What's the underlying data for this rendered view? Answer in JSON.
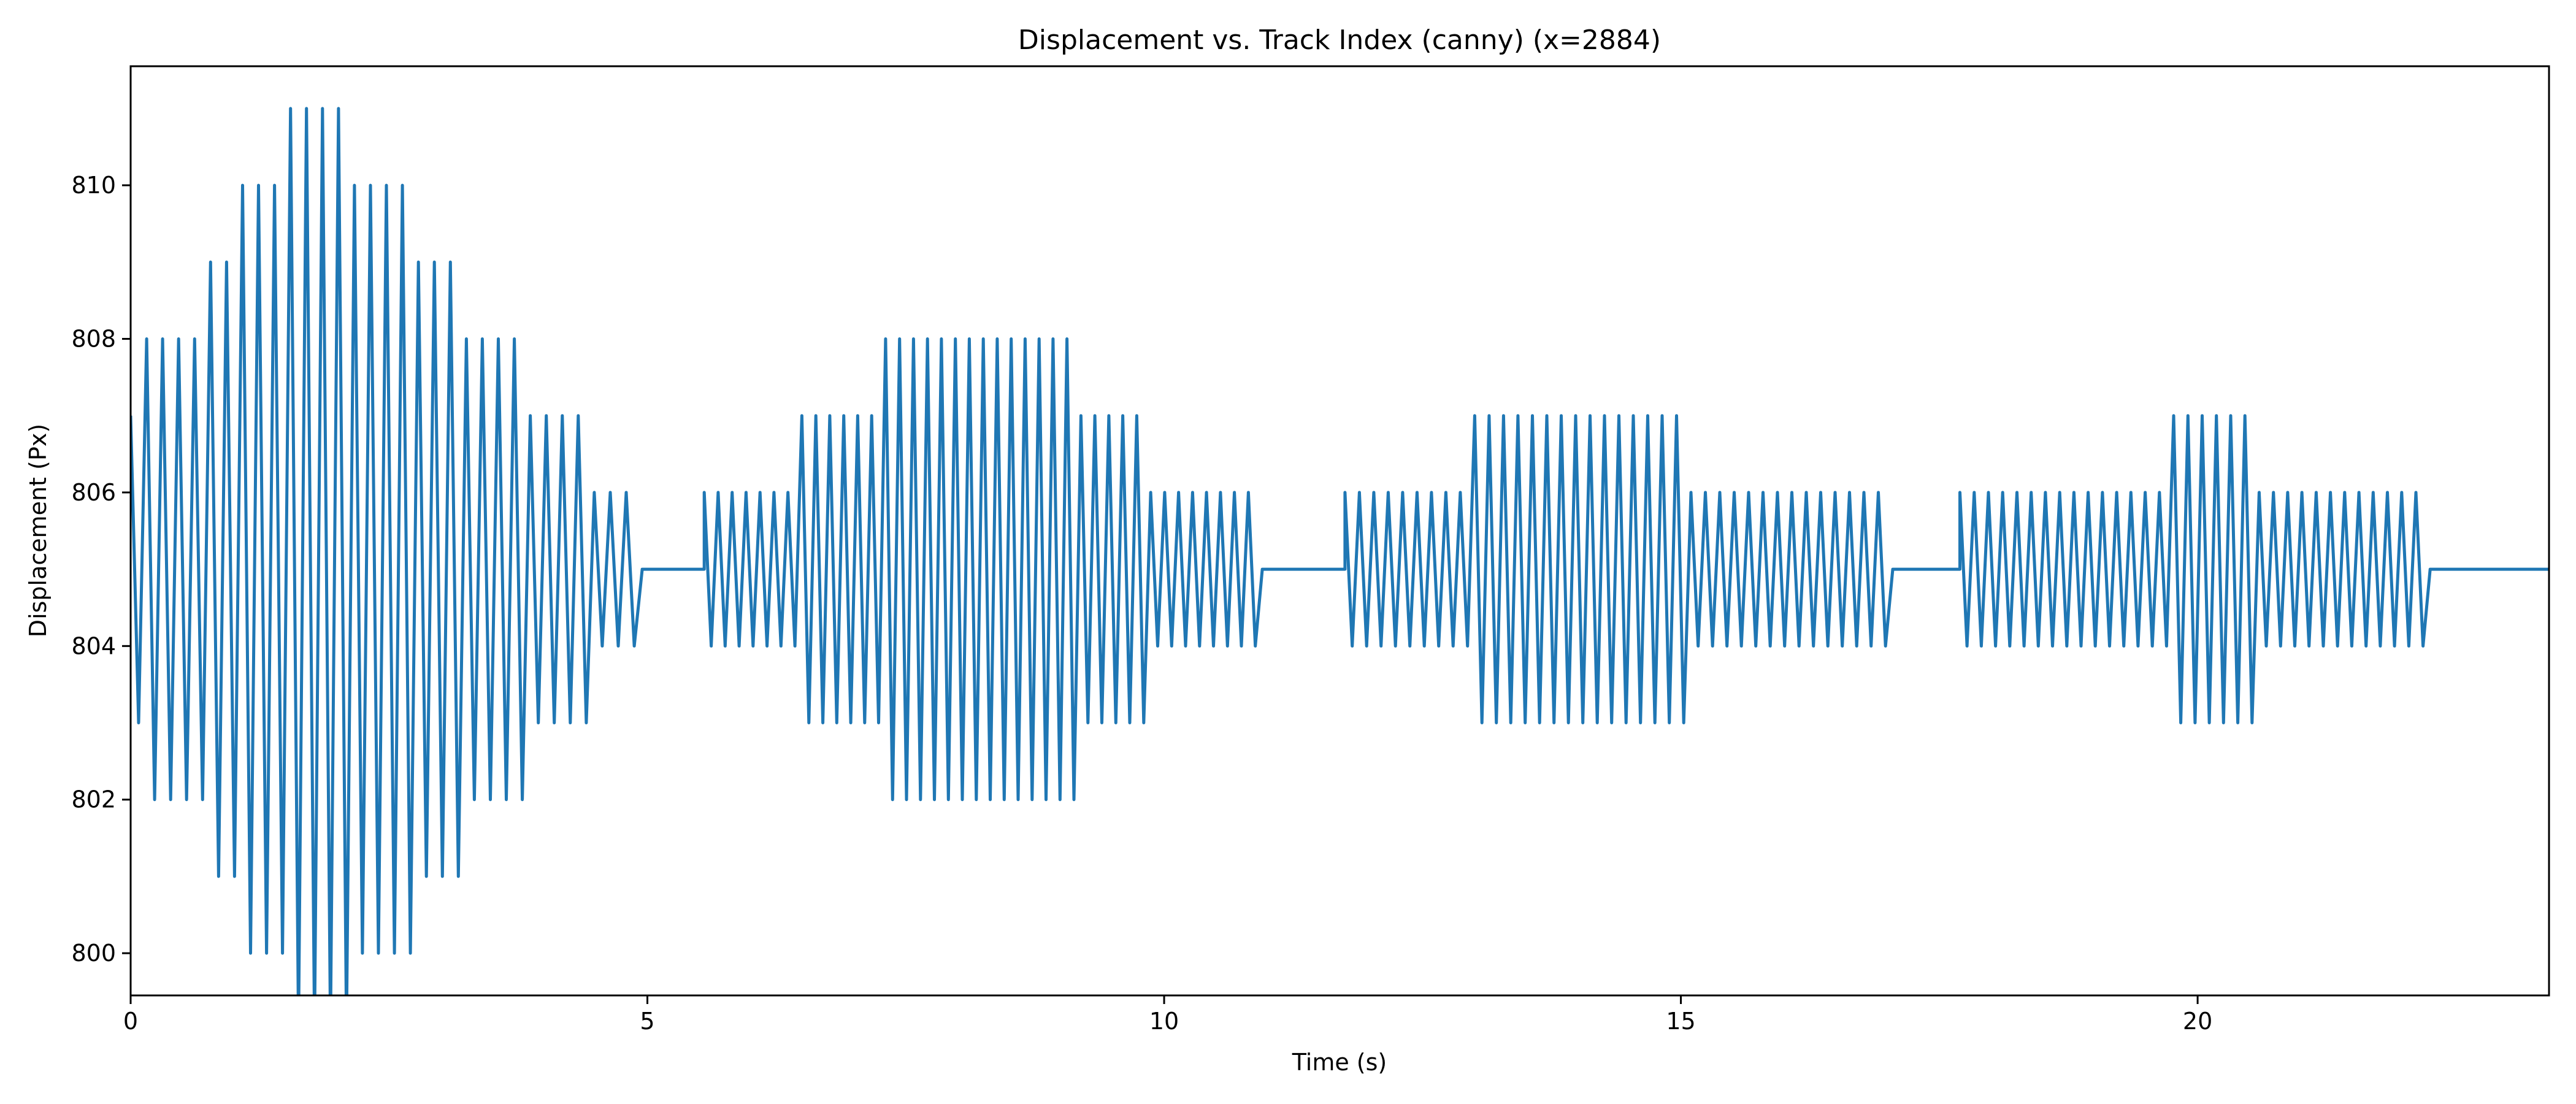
{
  "chart_data": {
    "type": "line",
    "title": "Displacement vs. Track Index (canny) (x=2884)",
    "xlabel": "Time (s)",
    "ylabel": "Displacement (Px)",
    "xlim": [
      0,
      23.4
    ],
    "ylim": [
      799.45,
      811.55
    ],
    "xticks": [
      0,
      5,
      10,
      15,
      20
    ],
    "yticks": [
      800,
      802,
      804,
      806,
      808,
      810
    ],
    "grid": false,
    "legend": "none",
    "line_color": "#1f77b4",
    "sample_interval_s": 0.0833,
    "series": [
      {
        "segments": [
          {
            "t_start": 0.0,
            "t_end": 4.95,
            "kind": "osc",
            "baseline": 805,
            "amplitudes": [
              2,
              3,
              3,
              3,
              3,
              4,
              4,
              5,
              5,
              5,
              6,
              6,
              6,
              6,
              5,
              5,
              5,
              5,
              4,
              4,
              4,
              3,
              3,
              3,
              3,
              2,
              2,
              2,
              2,
              1,
              1,
              1
            ],
            "last_level": 805
          },
          {
            "t_start": 4.95,
            "t_end": 5.55,
            "kind": "flat",
            "value": 805
          },
          {
            "t_start": 5.55,
            "t_end": 10.95,
            "kind": "osc",
            "baseline": 805,
            "amplitudes": [
              1,
              1,
              1,
              1,
              1,
              1,
              1,
              2,
              2,
              2,
              2,
              2,
              2,
              3,
              3,
              3,
              3,
              3,
              3,
              3,
              3,
              3,
              3,
              3,
              3,
              3,
              3,
              2,
              2,
              2,
              2,
              2,
              1,
              1,
              1,
              1,
              1,
              1,
              1,
              1
            ],
            "last_level": 805
          },
          {
            "t_start": 10.95,
            "t_end": 11.75,
            "kind": "flat",
            "value": 805
          },
          {
            "t_start": 11.75,
            "t_end": 17.05,
            "kind": "osc",
            "baseline": 805,
            "amplitudes": [
              1,
              1,
              1,
              1,
              1,
              1,
              1,
              1,
              1,
              2,
              2,
              2,
              2,
              2,
              2,
              2,
              2,
              2,
              2,
              2,
              2,
              2,
              2,
              2,
              1,
              1,
              1,
              1,
              1,
              1,
              1,
              1,
              1,
              1,
              1,
              1,
              1,
              1
            ],
            "last_level": 805
          },
          {
            "t_start": 17.05,
            "t_end": 17.7,
            "kind": "flat",
            "value": 805
          },
          {
            "t_start": 17.7,
            "t_end": 22.25,
            "kind": "osc",
            "baseline": 805,
            "amplitudes": [
              1,
              1,
              1,
              1,
              1,
              1,
              1,
              1,
              1,
              1,
              1,
              1,
              1,
              1,
              1,
              2,
              2,
              2,
              2,
              2,
              2,
              1,
              1,
              1,
              1,
              1,
              1,
              1,
              1,
              1,
              1,
              1,
              1
            ],
            "last_level": 805
          },
          {
            "t_start": 22.25,
            "t_end": 23.4,
            "kind": "flat",
            "value": 805
          }
        ]
      }
    ]
  }
}
